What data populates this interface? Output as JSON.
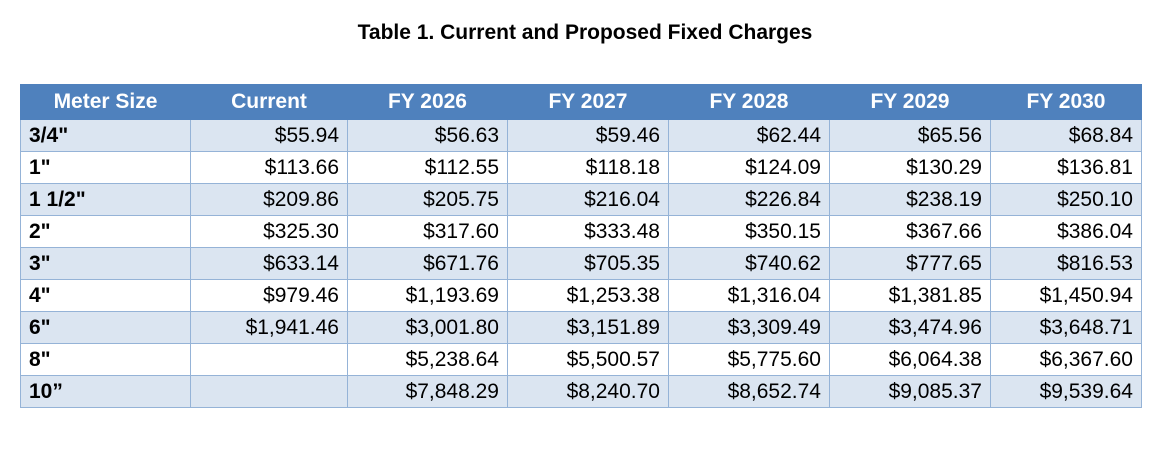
{
  "title": "Table 1. Current and Proposed Fixed Charges",
  "table": {
    "headers": [
      "Meter Size",
      "Current",
      "FY 2026",
      "FY 2027",
      "FY 2028",
      "FY 2029",
      "FY 2030"
    ],
    "rows": [
      [
        "3/4\"",
        "$55.94",
        "$56.63",
        "$59.46",
        "$62.44",
        "$65.56",
        "$68.84"
      ],
      [
        "1\"",
        "$113.66",
        "$112.55",
        "$118.18",
        "$124.09",
        "$130.29",
        "$136.81"
      ],
      [
        "1 1/2\"",
        "$209.86",
        "$205.75",
        "$216.04",
        "$226.84",
        "$238.19",
        "$250.10"
      ],
      [
        "2\"",
        "$325.30",
        "$317.60",
        "$333.48",
        "$350.15",
        "$367.66",
        "$386.04"
      ],
      [
        "3\"",
        "$633.14",
        "$671.76",
        "$705.35",
        "$740.62",
        "$777.65",
        "$816.53"
      ],
      [
        "4\"",
        "$979.46",
        "$1,193.69",
        "$1,253.38",
        "$1,316.04",
        "$1,381.85",
        "$1,450.94"
      ],
      [
        "6\"",
        "$1,941.46",
        "$3,001.80",
        "$3,151.89",
        "$3,309.49",
        "$3,474.96",
        "$3,648.71"
      ],
      [
        "8\"",
        "",
        "$5,238.64",
        "$5,500.57",
        "$5,775.60",
        "$6,064.38",
        "$6,367.60"
      ],
      [
        "10”",
        "",
        "$7,848.29",
        "$8,240.70",
        "$8,652.74",
        "$9,085.37",
        "$9,539.64"
      ]
    ]
  },
  "colors": {
    "header_bg": "#4f81bd",
    "band_bg": "#dbe5f1",
    "border": "#95b3d7"
  }
}
